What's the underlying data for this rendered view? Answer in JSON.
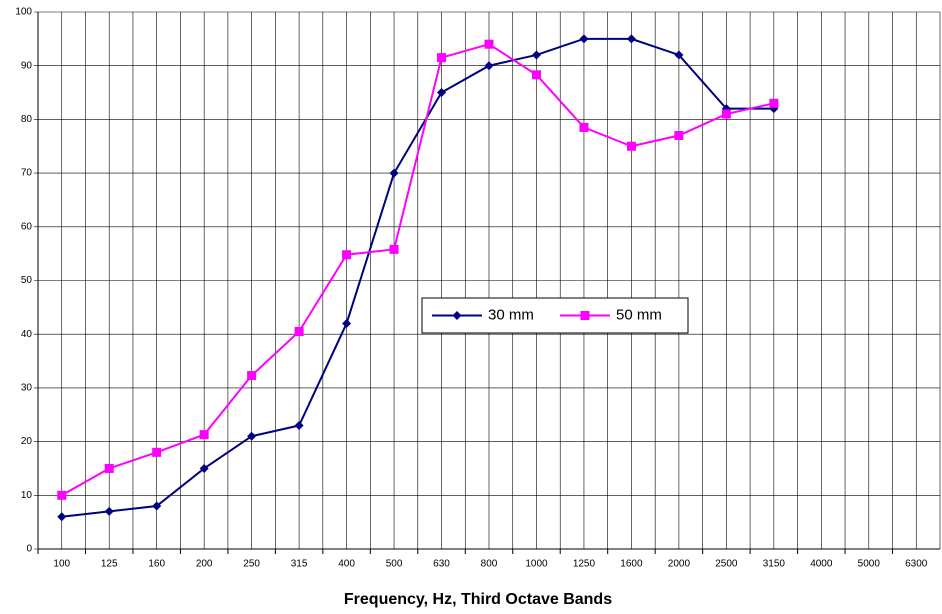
{
  "chart_data": {
    "type": "line",
    "x_label": "Frequency, Hz, Third Octave Bands",
    "categories": [
      "100",
      "125",
      "160",
      "200",
      "250",
      "315",
      "400",
      "500",
      "630",
      "800",
      "1000",
      "1250",
      "1600",
      "2000",
      "2500",
      "3150",
      "4000",
      "5000",
      "6300"
    ],
    "series": [
      {
        "name": "30 mm",
        "color": "#000080",
        "marker": "diamond",
        "values": [
          6,
          7,
          8,
          15,
          21,
          23,
          42,
          70,
          85,
          90,
          92,
          95,
          95,
          92,
          82,
          82,
          null,
          null,
          null
        ]
      },
      {
        "name": "50 mm",
        "color": "#ff00ff",
        "marker": "square",
        "values": [
          10,
          15,
          18,
          21.3,
          32.3,
          40.5,
          54.8,
          55.8,
          91.5,
          94,
          88.3,
          78.5,
          75,
          77,
          81,
          83,
          null,
          null,
          null
        ]
      }
    ],
    "ylim": [
      0,
      100
    ],
    "yticks": [
      0,
      10,
      20,
      30,
      40,
      50,
      60,
      70,
      80,
      90,
      100
    ],
    "grid": true
  }
}
